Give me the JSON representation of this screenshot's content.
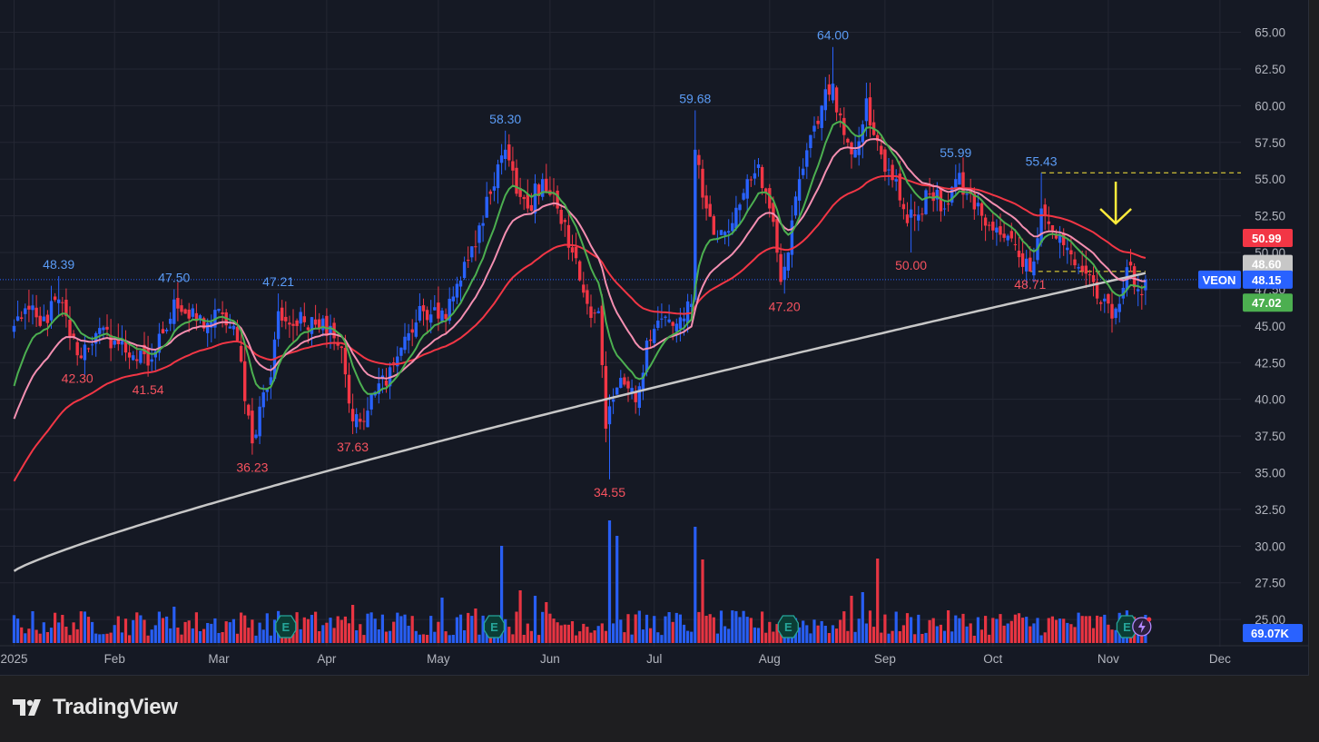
{
  "footer": {
    "brand": "TradingView",
    "logo_icon": "tradingview-logo-icon"
  },
  "colors": {
    "background": "#151924",
    "grid": "#242733",
    "up": "#2962ff",
    "down": "#f23645",
    "ma_fast": "#4caf50",
    "ma_mid": "#f48fb1",
    "ma_slow": "#f23645",
    "ma_long": "#c7c7c7",
    "arrow": "#ffeb3b"
  },
  "chart_data": {
    "type": "candlestick",
    "ticker": "VEON",
    "price_axis": {
      "ticks": [
        "25.00",
        "27.50",
        "30.00",
        "32.50",
        "35.00",
        "37.50",
        "40.00",
        "42.50",
        "45.00",
        "47.50",
        "50.00",
        "52.50",
        "55.00",
        "57.50",
        "60.00",
        "62.50",
        "65.00"
      ],
      "range": [
        23.4,
        67.2
      ]
    },
    "time_axis": {
      "ticks": [
        "2025",
        "Feb",
        "Mar",
        "Apr",
        "May",
        "Jun",
        "Jul",
        "Aug",
        "Sep",
        "Oct",
        "Nov",
        "Dec"
      ]
    },
    "price_badges": [
      {
        "label": "VEON",
        "value": "48.15",
        "color": "#2962ff"
      },
      {
        "value": "50.99",
        "color": "#f23645"
      },
      {
        "value": "48.60",
        "color": "#c7c7c7"
      },
      {
        "value": "47.02",
        "color": "#4caf50"
      }
    ],
    "volume_badge": "69.07K",
    "annotations": [
      {
        "text": "48.39",
        "kind": "high",
        "date_index": 12,
        "value": 48.39
      },
      {
        "text": "42.30",
        "kind": "low",
        "date_index": 17,
        "value": 42.3
      },
      {
        "text": "41.54",
        "kind": "low",
        "date_index": 36,
        "value": 41.54
      },
      {
        "text": "47.50",
        "kind": "high",
        "date_index": 43,
        "value": 47.5
      },
      {
        "text": "36.23",
        "kind": "low",
        "date_index": 64,
        "value": 36.23
      },
      {
        "text": "47.21",
        "kind": "high",
        "date_index": 71,
        "value": 47.21
      },
      {
        "text": "37.63",
        "kind": "low",
        "date_index": 91,
        "value": 37.63
      },
      {
        "text": "58.30",
        "kind": "high",
        "date_index": 132,
        "value": 58.3
      },
      {
        "text": "34.55",
        "kind": "low",
        "date_index": 160,
        "value": 34.55
      },
      {
        "text": "59.68",
        "kind": "high",
        "date_index": 183,
        "value": 59.68
      },
      {
        "text": "47.20",
        "kind": "low",
        "date_index": 207,
        "value": 47.2
      },
      {
        "text": "64.00",
        "kind": "high",
        "date_index": 220,
        "value": 64.0
      },
      {
        "text": "50.00",
        "kind": "low",
        "date_index": 241,
        "value": 50.0
      },
      {
        "text": "55.99",
        "kind": "high",
        "date_index": 253,
        "value": 55.99
      },
      {
        "text": "55.43",
        "kind": "high",
        "date_index": 276,
        "value": 55.43
      },
      {
        "text": "48.71",
        "kind": "low",
        "date_index": 273,
        "value": 48.71
      }
    ],
    "resistance_level": 55.43,
    "support_level": 48.71,
    "earnings_marker": "E",
    "earnings_dates": [
      73,
      129,
      208,
      299
    ],
    "ma_labels": [],
    "anchors_close": [
      [
        0,
        45.0
      ],
      [
        3,
        46.2
      ],
      [
        7,
        45.0
      ],
      [
        12,
        46.8
      ],
      [
        17,
        43.0
      ],
      [
        22,
        44.5
      ],
      [
        27,
        44.0
      ],
      [
        32,
        43.0
      ],
      [
        36,
        42.3
      ],
      [
        40,
        44.5
      ],
      [
        43,
        46.8
      ],
      [
        47,
        45.5
      ],
      [
        52,
        45.2
      ],
      [
        56,
        45.8
      ],
      [
        60,
        44.0
      ],
      [
        64,
        37.0
      ],
      [
        66,
        39.5
      ],
      [
        69,
        41.5
      ],
      [
        71,
        46.0
      ],
      [
        75,
        45.0
      ],
      [
        80,
        45.6
      ],
      [
        85,
        45.0
      ],
      [
        88,
        43.5
      ],
      [
        91,
        38.5
      ],
      [
        94,
        38.5
      ],
      [
        97,
        40.5
      ],
      [
        102,
        42.5
      ],
      [
        106,
        44.5
      ],
      [
        110,
        46.0
      ],
      [
        114,
        45.5
      ],
      [
        118,
        47.0
      ],
      [
        122,
        49.5
      ],
      [
        126,
        52.0
      ],
      [
        130,
        56.0
      ],
      [
        132,
        57.0
      ],
      [
        135,
        54.0
      ],
      [
        138,
        53.0
      ],
      [
        142,
        55.0
      ],
      [
        146,
        53.0
      ],
      [
        150,
        50.0
      ],
      [
        154,
        46.5
      ],
      [
        157,
        46.0
      ],
      [
        159,
        38.0
      ],
      [
        161,
        40.0
      ],
      [
        164,
        41.0
      ],
      [
        167,
        39.8
      ],
      [
        170,
        44.0
      ],
      [
        174,
        45.5
      ],
      [
        177,
        45.0
      ],
      [
        180,
        45.5
      ],
      [
        182,
        46.5
      ],
      [
        183,
        57.0
      ],
      [
        186,
        53.0
      ],
      [
        189,
        51.0
      ],
      [
        193,
        52.0
      ],
      [
        197,
        55.0
      ],
      [
        200,
        56.0
      ],
      [
        203,
        53.0
      ],
      [
        206,
        48.0
      ],
      [
        208,
        50.0
      ],
      [
        211,
        55.0
      ],
      [
        214,
        58.0
      ],
      [
        217,
        60.0
      ],
      [
        220,
        61.5
      ],
      [
        223,
        58.0
      ],
      [
        226,
        57.0
      ],
      [
        229,
        60.5
      ],
      [
        231,
        58.0
      ],
      [
        234,
        55.5
      ],
      [
        237,
        55.0
      ],
      [
        240,
        52.0
      ],
      [
        242,
        52.5
      ],
      [
        246,
        54.0
      ],
      [
        250,
        53.0
      ],
      [
        253,
        55.0
      ],
      [
        256,
        54.0
      ],
      [
        260,
        52.5
      ],
      [
        263,
        51.5
      ],
      [
        266,
        51.0
      ],
      [
        269,
        50.5
      ],
      [
        273,
        48.7
      ],
      [
        276,
        53.0
      ],
      [
        279,
        51.5
      ],
      [
        282,
        50.5
      ],
      [
        286,
        49.0
      ],
      [
        289,
        48.5
      ],
      [
        292,
        46.5
      ],
      [
        295,
        45.5
      ],
      [
        297,
        46.5
      ],
      [
        299,
        49.0
      ],
      [
        302,
        47.5
      ],
      [
        304,
        48.15
      ]
    ],
    "candles": [],
    "volume": []
  }
}
